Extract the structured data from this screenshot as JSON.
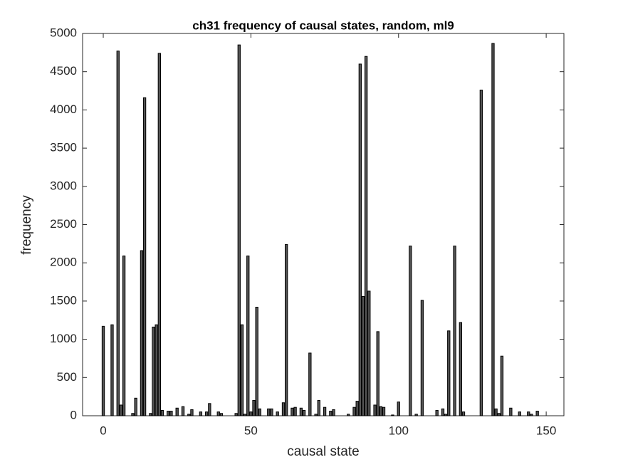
{
  "chart_data": {
    "type": "bar",
    "title": "ch31 frequency of causal states, random, ml9",
    "x_label": "causal state",
    "y_label": "frequency",
    "x": [
      0,
      3,
      5,
      6,
      7,
      10,
      11,
      13,
      14,
      16,
      17,
      18,
      19,
      20,
      22,
      23,
      25,
      27,
      29,
      30,
      33,
      35,
      36,
      39,
      40,
      45,
      46,
      47,
      48,
      49,
      50,
      51,
      52,
      53,
      56,
      57,
      59,
      61,
      62,
      64,
      65,
      67,
      68,
      70,
      72,
      73,
      75,
      77,
      78,
      83,
      85,
      86,
      87,
      88,
      89,
      90,
      92,
      93,
      94,
      95,
      98,
      100,
      104,
      106,
      108,
      113,
      115,
      116,
      117,
      119,
      121,
      122,
      128,
      132,
      133,
      134,
      135,
      138,
      141,
      144,
      145,
      147
    ],
    "values": [
      1170,
      1190,
      4770,
      140,
      2090,
      30,
      230,
      2160,
      4160,
      30,
      1160,
      1190,
      4740,
      70,
      60,
      60,
      100,
      120,
      20,
      80,
      50,
      50,
      160,
      50,
      30,
      30,
      4850,
      1190,
      20,
      2090,
      50,
      200,
      1420,
      90,
      90,
      90,
      50,
      170,
      2240,
      100,
      110,
      100,
      70,
      820,
      20,
      200,
      110,
      60,
      80,
      20,
      110,
      190,
      4600,
      1560,
      4700,
      1630,
      140,
      1100,
      120,
      110,
      10,
      180,
      2220,
      20,
      1510,
      70,
      90,
      20,
      1110,
      2220,
      1220,
      50,
      4260,
      4870,
      90,
      30,
      780,
      100,
      50,
      50,
      20,
      60
    ],
    "color": "#555555",
    "xlim": [
      -7,
      156
    ],
    "xticks": [
      0,
      50,
      100,
      150
    ],
    "ylim": [
      0,
      5000
    ],
    "yticks": [
      0,
      500,
      1000,
      1500,
      2000,
      2500,
      3000,
      3500,
      4000,
      4500,
      5000
    ]
  }
}
